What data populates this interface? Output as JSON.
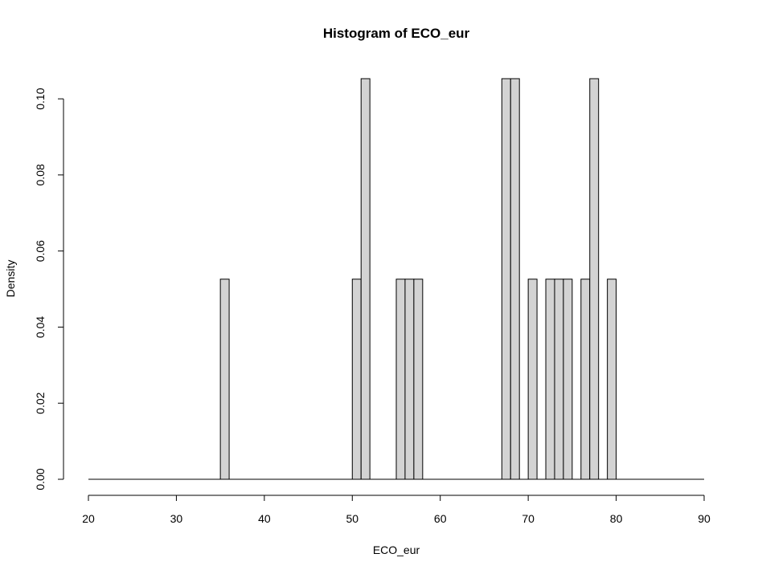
{
  "chart_data": {
    "type": "bar",
    "title": "Histogram of ECO_eur",
    "xlabel": "ECO_eur",
    "ylabel": "Density",
    "xlim": [
      20,
      90
    ],
    "ylim": [
      0,
      0.1053
    ],
    "bin_width": 1,
    "x_ticks": [
      20,
      30,
      40,
      50,
      60,
      70,
      80,
      90
    ],
    "y_ticks": [
      0.0,
      0.02,
      0.04,
      0.06,
      0.08,
      0.1
    ],
    "y_tick_labels": [
      "0.00",
      "0.02",
      "0.04",
      "0.06",
      "0.08",
      "0.10"
    ],
    "bins": [
      {
        "x0": 35,
        "x1": 36,
        "density": 0.0526
      },
      {
        "x0": 50,
        "x1": 51,
        "density": 0.0526
      },
      {
        "x0": 51,
        "x1": 52,
        "density": 0.1053
      },
      {
        "x0": 55,
        "x1": 56,
        "density": 0.0526
      },
      {
        "x0": 56,
        "x1": 57,
        "density": 0.0526
      },
      {
        "x0": 57,
        "x1": 58,
        "density": 0.0526
      },
      {
        "x0": 67,
        "x1": 68,
        "density": 0.1053
      },
      {
        "x0": 68,
        "x1": 69,
        "density": 0.1053
      },
      {
        "x0": 70,
        "x1": 71,
        "density": 0.0526
      },
      {
        "x0": 72,
        "x1": 73,
        "density": 0.0526
      },
      {
        "x0": 73,
        "x1": 74,
        "density": 0.0526
      },
      {
        "x0": 74,
        "x1": 75,
        "density": 0.0526
      },
      {
        "x0": 76,
        "x1": 77,
        "density": 0.0526
      },
      {
        "x0": 77,
        "x1": 78,
        "density": 0.1053
      },
      {
        "x0": 79,
        "x1": 80,
        "density": 0.0526
      }
    ],
    "bar_color": "#d3d3d3",
    "grid": false
  }
}
